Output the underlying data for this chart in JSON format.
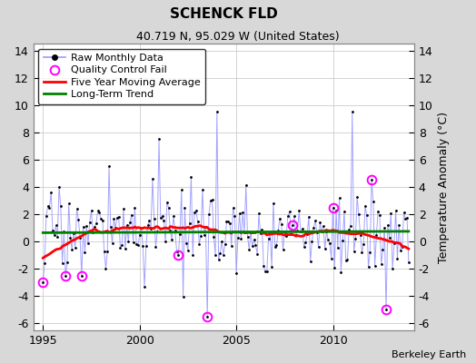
{
  "title": "SCHENCK FLD",
  "subtitle": "40.719 N, 95.029 W (United States)",
  "ylabel": "Temperature Anomaly (°C)",
  "attribution": "Berkeley Earth",
  "xlim": [
    1994.5,
    2014.2
  ],
  "ylim": [
    -6.5,
    14.5
  ],
  "yticks": [
    -6,
    -4,
    -2,
    0,
    2,
    4,
    6,
    8,
    10,
    12,
    14
  ],
  "xticks": [
    1995,
    2000,
    2005,
    2010
  ],
  "plot_bg": "#ffffff",
  "fig_bg": "#d8d8d8",
  "line_color": "#9999ff",
  "seed": 17
}
